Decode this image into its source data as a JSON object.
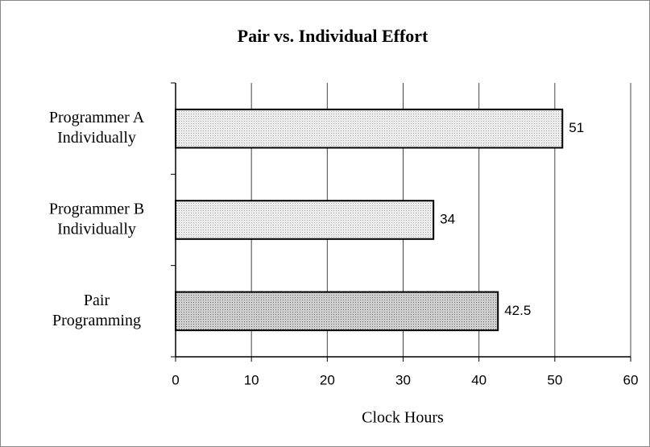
{
  "chart_data": {
    "type": "hbar",
    "title": "Pair vs. Individual Effort",
    "x_label": "Clock Hours",
    "categories": [
      "Programmer A\nIndividually",
      "Programmer B\nIndividually",
      "Pair\nProgramming"
    ],
    "values": [
      51,
      34,
      42.5
    ],
    "colors": [
      "#ececec",
      "#ececec",
      "#cfcfcf"
    ],
    "xlim": [
      0,
      60
    ],
    "xticks": [
      0,
      10,
      20,
      30,
      40,
      50,
      60
    ],
    "grid": true
  }
}
